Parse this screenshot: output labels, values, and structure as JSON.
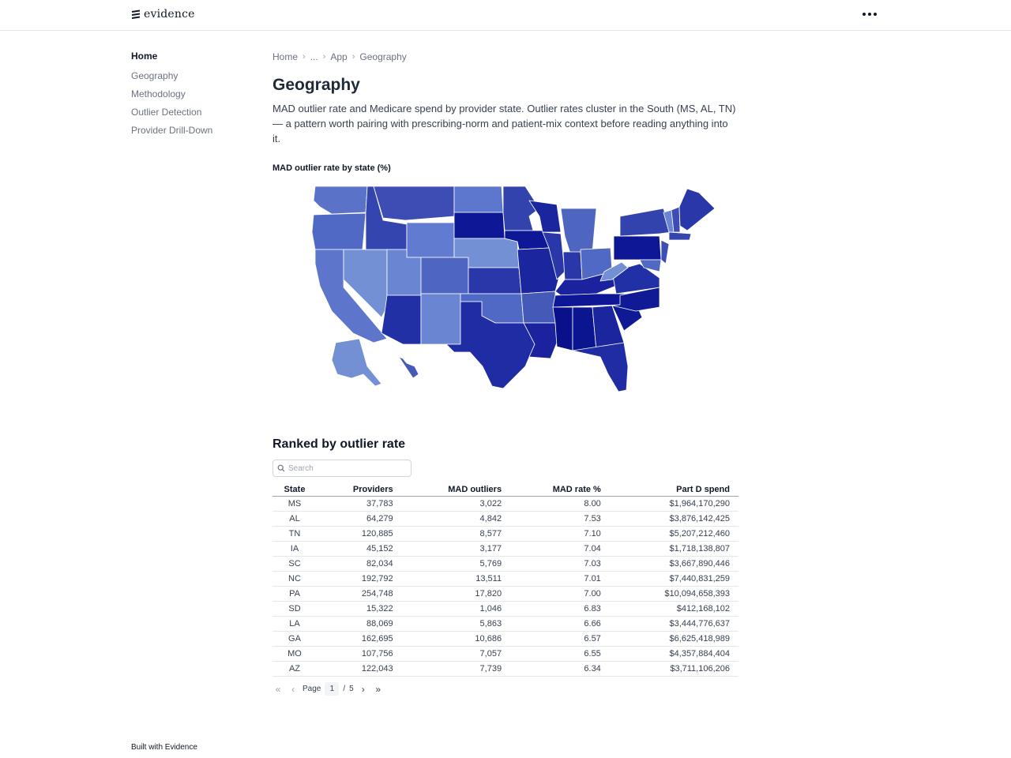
{
  "app": {
    "name": "evidence"
  },
  "sidebar": {
    "home": "Home",
    "items": [
      {
        "label": "Geography"
      },
      {
        "label": "Methodology"
      },
      {
        "label": "Outlier Detection"
      },
      {
        "label": "Provider Drill-Down"
      }
    ]
  },
  "breadcrumb": [
    "Home",
    "...",
    "App",
    "Geography"
  ],
  "page": {
    "title": "Geography",
    "intro": "MAD outlier rate and Medicare spend by provider state. Outlier rates cluster in the South (MS, AL, TN) — a pattern worth pairing with prescribing-norm and patient-mix context before reading anything into it."
  },
  "map": {
    "title": "MAD outlier rate by state (%)",
    "type": "choropleth",
    "color_scale": {
      "low": "#6f8fd1",
      "high": "#08108a"
    }
  },
  "ranked": {
    "heading": "Ranked by outlier rate",
    "search_placeholder": "Search",
    "columns": [
      "State",
      "Providers",
      "MAD outliers",
      "MAD rate %",
      "Part D spend"
    ],
    "rows": [
      [
        "MS",
        "37,783",
        "3,022",
        "8.00",
        "$1,964,170,290"
      ],
      [
        "AL",
        "64,279",
        "4,842",
        "7.53",
        "$3,876,142,425"
      ],
      [
        "TN",
        "120,885",
        "8,577",
        "7.10",
        "$5,207,212,460"
      ],
      [
        "IA",
        "45,152",
        "3,177",
        "7.04",
        "$1,718,138,807"
      ],
      [
        "SC",
        "82,034",
        "5,769",
        "7.03",
        "$3,667,890,446"
      ],
      [
        "NC",
        "192,792",
        "13,511",
        "7.01",
        "$7,440,831,259"
      ],
      [
        "PA",
        "254,748",
        "17,820",
        "7.00",
        "$10,094,658,393"
      ],
      [
        "SD",
        "15,322",
        "1,046",
        "6.83",
        "$412,168,102"
      ],
      [
        "LA",
        "88,069",
        "5,863",
        "6.66",
        "$3,444,776,637"
      ],
      [
        "GA",
        "162,695",
        "10,686",
        "6.57",
        "$6,625,418,989"
      ],
      [
        "MO",
        "107,756",
        "7,057",
        "6.55",
        "$4,357,884,404"
      ],
      [
        "AZ",
        "122,043",
        "7,739",
        "6.34",
        "$3,711,106,206"
      ]
    ]
  },
  "pager": {
    "label": "Page",
    "current": "1",
    "sep": "/",
    "total": "5"
  },
  "footer": "Built with Evidence"
}
